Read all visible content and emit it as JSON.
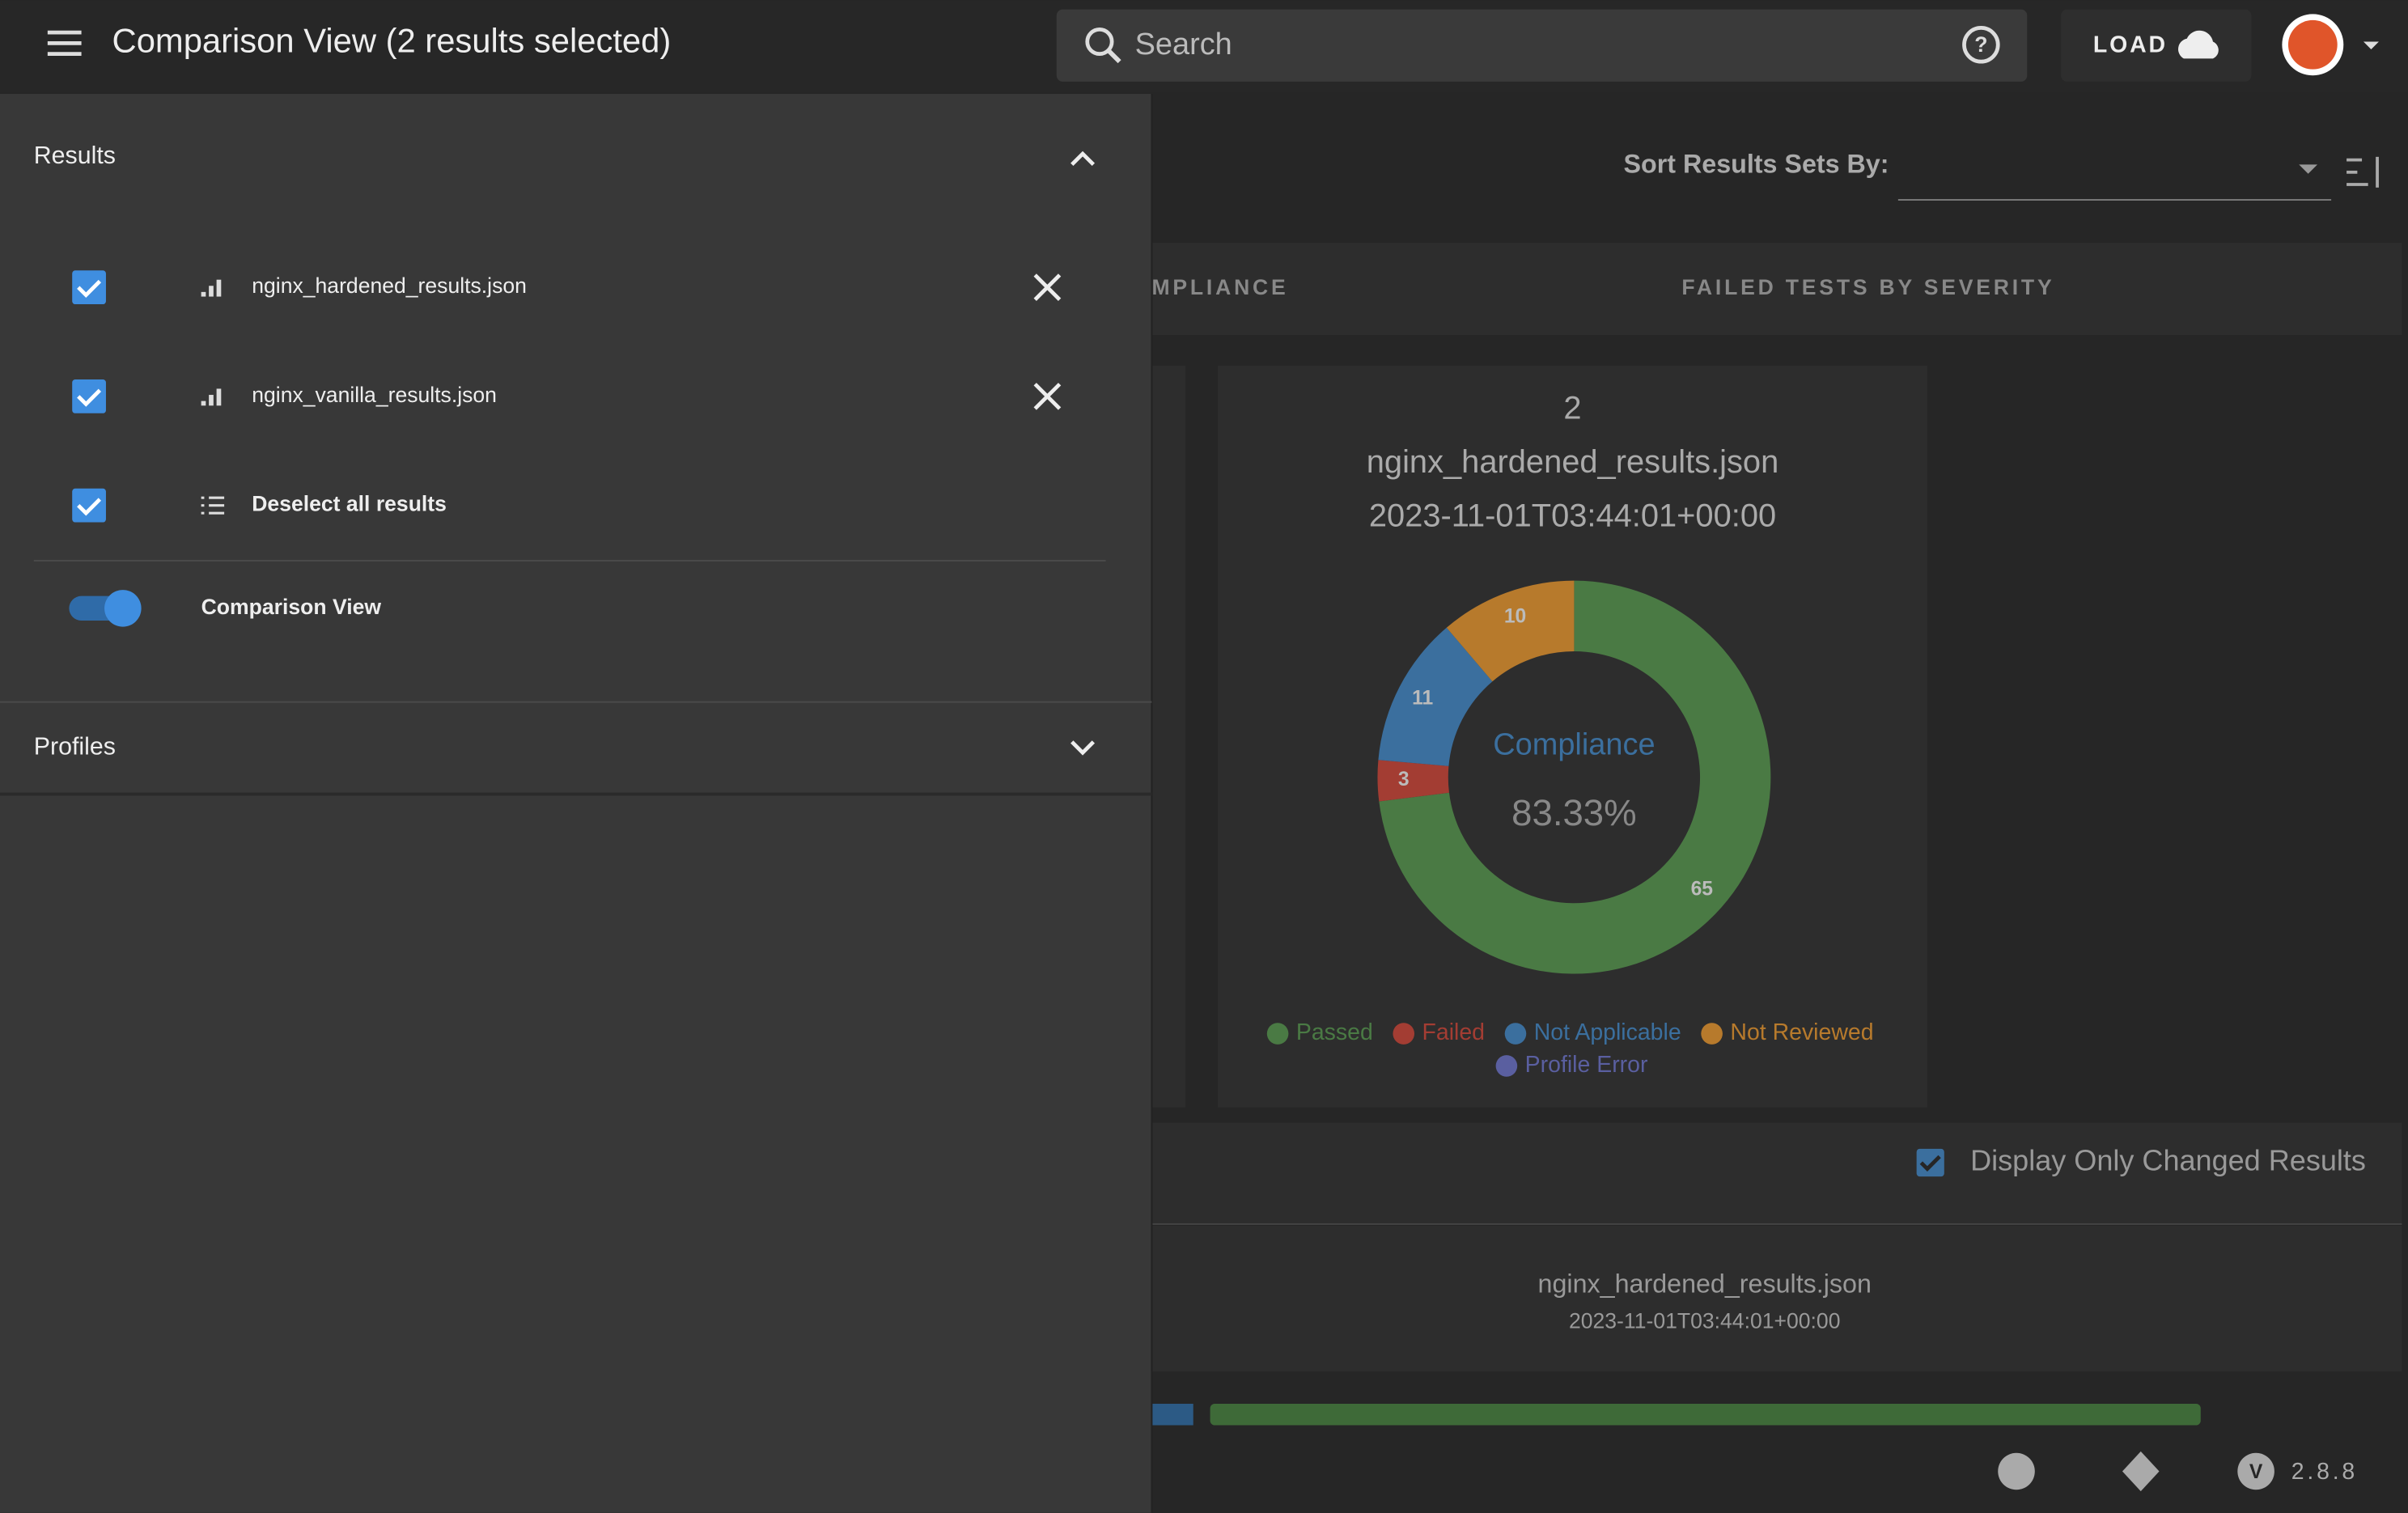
{
  "header": {
    "title": "Comparison View (2 results selected)",
    "search_placeholder": "Search",
    "load_button": "LOAD"
  },
  "sidebar": {
    "results_heading": "Results",
    "files": [
      "nginx_hardened_results.json",
      "nginx_vanilla_results.json"
    ],
    "deselect": "Deselect all results",
    "comparison_toggle": "Comparison View",
    "profiles_heading": "Profiles"
  },
  "main": {
    "sort_label": "Sort Results Sets By:",
    "columns": [
      "MPLIANCE",
      "FAILED TESTS BY SEVERITY"
    ],
    "card": {
      "index": 2,
      "filename": "nginx_hardened_results.json",
      "timestamp": "2023-11-01T03:44:01+00:00",
      "chart": {
        "type": "pie",
        "center_title": "Compliance",
        "center_value": "83.33%",
        "categories": [
          "Passed",
          "Failed",
          "Not Applicable",
          "Not Reviewed",
          "Profile Error"
        ],
        "values": [
          65,
          3,
          11,
          10,
          0
        ],
        "colors": [
          "#4a7a44",
          "#a33d33",
          "#3b6f9e",
          "#b77a2c",
          "#5a5fa0"
        ]
      }
    },
    "display_only_changed": "Display Only Changed Results",
    "table_header": {
      "filename": "nginx_hardened_results.json",
      "timestamp": "2023-11-01T03:44:01+00:00"
    }
  },
  "footer": {
    "version": "2.8.8"
  }
}
